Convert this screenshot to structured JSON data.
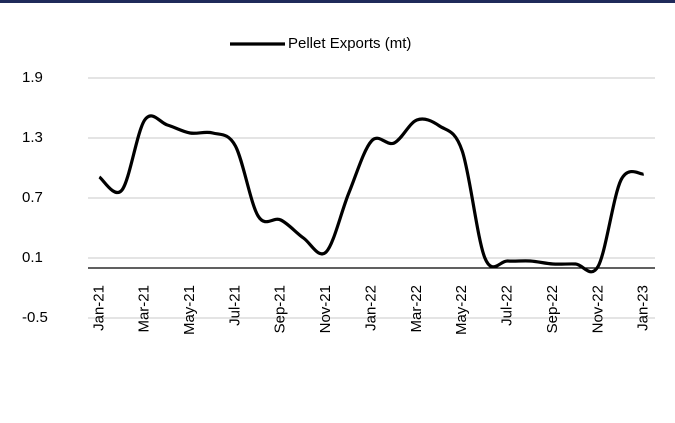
{
  "chart_data": {
    "type": "line",
    "categories": [
      "Jan-21",
      null,
      "Mar-21",
      null,
      "May-21",
      null,
      "Jul-21",
      null,
      "Sep-21",
      null,
      "Nov-21",
      null,
      "Jan-22",
      null,
      "Mar-22",
      null,
      "May-22",
      null,
      "Jul-22",
      null,
      "Sep-22",
      null,
      "Nov-22",
      null,
      "Jan-23"
    ],
    "series": [
      {
        "name": "Pellet Exports (mt)",
        "color": "#000000",
        "values": [
          0.91,
          0.78,
          1.48,
          1.43,
          1.35,
          1.35,
          1.22,
          0.52,
          0.48,
          0.3,
          0.16,
          0.75,
          1.27,
          1.25,
          1.48,
          1.42,
          1.17,
          0.1,
          0.07,
          0.07,
          0.04,
          0.04,
          0.02,
          0.88,
          0.94
        ]
      }
    ],
    "ylim": [
      -0.5,
      1.9
    ],
    "yticks": [
      -0.5,
      0.1,
      0.7,
      1.3,
      1.9
    ],
    "grid": true,
    "legend": "top"
  }
}
